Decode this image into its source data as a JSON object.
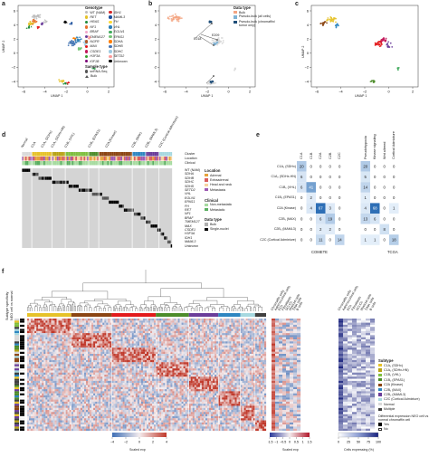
{
  "panels": {
    "a": "a",
    "b": "b",
    "c": "c",
    "d": "d",
    "e": "e",
    "f": "f"
  },
  "umap": {
    "xlabel": "UMAP 1",
    "ylabel": "UMAP 2",
    "x_ticks": [
      "−6",
      "−4",
      "−2",
      "0",
      "2"
    ],
    "y_ticks": [
      "6",
      "4",
      "2",
      "0",
      "−2",
      "−4"
    ]
  },
  "genotype_legend": {
    "title": "Genotype",
    "items": [
      {
        "label": "WT (NAM)",
        "color": "#bdbdbd"
      },
      {
        "label": "RET",
        "color": "#e6c229"
      },
      {
        "label": "HRAS",
        "color": "#1f8a3b"
      },
      {
        "label": "NF1",
        "color": "#e8702a"
      },
      {
        "label": "BRAF",
        "color": "#f3a6c8"
      },
      {
        "label": "TMEM127",
        "color": "#6a3d9a"
      },
      {
        "label": "NGFR",
        "color": "#b15928"
      },
      {
        "label": "MAX",
        "color": "#e31a1c"
      },
      {
        "label": "CSDE1",
        "color": "#c2185b"
      },
      {
        "label": "H3F3A",
        "color": "#33a02c"
      },
      {
        "label": "KIF1B",
        "color": "#7a0177"
      },
      {
        "label": "IDH1",
        "color": "#d62728"
      },
      {
        "label": "MAML3",
        "color": "#1b4f9c"
      },
      {
        "label": "FH",
        "color": "#fdd835"
      },
      {
        "label": "VHL",
        "color": "#2c7fb8"
      },
      {
        "label": "EGLN1",
        "color": "#41ab5d"
      },
      {
        "label": "EPAS1",
        "color": "#74c476"
      },
      {
        "label": "SDHA",
        "color": "#ff7f00"
      },
      {
        "label": "SDHB",
        "color": "#4575b4"
      },
      {
        "label": "SDHC",
        "color": "#9ecae1"
      },
      {
        "label": "SETD2",
        "color": "#fb9a99"
      },
      {
        "label": "Unknown",
        "color": "#000000"
      }
    ],
    "sample_title": "Sample type",
    "sample_items": [
      "snRNA-Seq",
      "Bulk"
    ]
  },
  "datatype_legend": {
    "title": "Data type",
    "items": [
      {
        "label": "Bulk",
        "color": "#f4a582"
      },
      {
        "label": "Pseudo-bulk (all cells)",
        "color": "#7fb3d5"
      },
      {
        "label": "Pseudo-bulk (chromaffin/ tumor only)",
        "color": "#1f4e79"
      }
    ],
    "annotations": [
      "E018",
      "E209"
    ]
  },
  "heatmap_d": {
    "subtypes": [
      "Normal",
      "C1A",
      "C1A₂ (SDHx)",
      "C1A₁ (SDHx-HN)",
      "C1B₁ (VHL)",
      "C1B₂ (EPAS1)",
      "C2A (Kinase)",
      "C2B₁ (MAX)",
      "C2B₂ (MAML3)",
      "C2C (Cortical Admixture)"
    ],
    "track_labels": [
      "Cluster",
      "Location",
      "Clinical"
    ],
    "genes": [
      "WT (NAM)",
      "SDHA",
      "SDHB",
      "SDHC",
      "SDHD",
      "SETD2",
      "VHL",
      "EGLN1",
      "EPAS1",
      "FH",
      "RET",
      "NF1",
      "BRAF",
      "TMEM127",
      "MAX",
      "CSDE1",
      "H3F3A",
      "IDH1",
      "MAML3",
      "Unknown"
    ],
    "location_title": "Location",
    "location_items": [
      {
        "label": "Adrenal",
        "color": "#e6a33a"
      },
      {
        "label": "Extraadrenal",
        "color": "#d95f5f"
      },
      {
        "label": "Head and neck",
        "color": "#f7d4a0"
      },
      {
        "label": "Metastasis",
        "color": "#9e5ab3"
      }
    ],
    "clinical_title": "Clinical",
    "clinical_items": [
      {
        "label": "Non-metastatic",
        "color": "#a6dba0"
      },
      {
        "label": "Metastatic",
        "color": "#5aae61"
      }
    ],
    "datatype_title": "Data type",
    "datatype_items": [
      {
        "label": "Bulk",
        "color": "#b0b0b0"
      },
      {
        "label": "Single-nuclei",
        "color": "#000000"
      }
    ]
  },
  "matrix_e": {
    "col_labels": [
      "C1A",
      "C1B",
      "C2A",
      "C2B",
      "C2C"
    ],
    "row_labels": [
      "C1A₁ (SDHx)",
      "C1A₂ (SDHx-HN)",
      "C1B₁ (VHL)",
      "C1B₂ (EPAS1)",
      "C2A (Kinase)",
      "C2B₁ (MAX)",
      "C2B₂ (MAML3)",
      "C2C (Cortical Admixture)"
    ],
    "values": [
      [
        20,
        0,
        0,
        0,
        0
      ],
      [
        6,
        0,
        0,
        0,
        0
      ],
      [
        6,
        41,
        0,
        0,
        0
      ],
      [
        0,
        2,
        0,
        0,
        0
      ],
      [
        0,
        4,
        67,
        3,
        0
      ],
      [
        0,
        0,
        6,
        19,
        0
      ],
      [
        0,
        0,
        2,
        2,
        0
      ],
      [
        0,
        0,
        11,
        0,
        14
      ]
    ],
    "col_labels_right": [
      "Pseudohypoxia",
      "Kinase signaling",
      "Wnt altered",
      "Cortical Admixture"
    ],
    "values_right": [
      [
        20,
        0,
        0,
        0
      ],
      [
        5,
        0,
        0,
        0
      ],
      [
        14,
        0,
        0,
        0
      ],
      [
        1,
        0,
        0,
        0
      ],
      [
        4,
        68,
        0,
        1
      ],
      [
        13,
        6,
        0,
        0
      ],
      [
        0,
        0,
        8,
        0
      ],
      [
        1,
        1,
        0,
        18
      ]
    ],
    "footer_left": "COMETE",
    "footer_right": "TCGA"
  },
  "heatmap_f": {
    "row_labels": [
      "Subtype specificity",
      "NEO cell vs normal"
    ],
    "celltype_cols": [
      "Chromaffin cells",
      "Adrenocortical cells",
      "ECs",
      "Fibroblasts",
      "SCLCs",
      "Myeloid cells",
      "T/NK cells",
      "B cells"
    ],
    "celltype_cols2": [
      "Chromaffin cells",
      "Adrenocortical cells",
      "ECs",
      "Fibroblasts",
      "SCLCs",
      "Myeloid cells",
      "T/NK cells",
      "B cells"
    ],
    "scale1_title": "Scaled exp",
    "scale1_ticks": [
      "−4",
      "−2",
      "0",
      "2",
      "4"
    ],
    "scale2_title": "Scaled exp",
    "scale2_ticks": [
      "−1.5",
      "−1",
      "−0.5",
      "0",
      "0.5",
      "1",
      "1.5"
    ],
    "scale3_title": "Cells expressing (%)",
    "scale3_ticks": [
      "0",
      "25",
      "50",
      "75",
      "100"
    ],
    "subtype_title": "Subtype",
    "subtype_items": [
      {
        "label": "C1A₁ (SDHx)",
        "color": "#e6c229"
      },
      {
        "label": "C1A₂ (SDHx-HN)",
        "color": "#b8a316"
      },
      {
        "label": "C1B₁ (VHL)",
        "color": "#7fbf3f"
      },
      {
        "label": "C1B₂ (EPAS1)",
        "color": "#4c8c2a"
      },
      {
        "label": "C2A (Kinase)",
        "color": "#8b4513"
      },
      {
        "label": "C2B₁ (MAX)",
        "color": "#2e86c1"
      },
      {
        "label": "C2B₂ (MAML3)",
        "color": "#6a3d9a"
      },
      {
        "label": "C2C (Cortical Admixture)",
        "color": "#a6d8e0"
      },
      {
        "label": "Normal",
        "color": "#d9d9d9"
      },
      {
        "label": "Multiple",
        "color": "#404040"
      }
    ],
    "diff_title": "Differential expression NEO cell vs normal chromaffin cell",
    "diff_items": [
      {
        "label": "Yes",
        "color": "#000000"
      },
      {
        "label": "No",
        "color": "#ffffff"
      }
    ]
  },
  "colors": {
    "heat_neg": "#3f6fb5",
    "heat_mid": "#f4ecee",
    "heat_pos": "#c0392b",
    "matrix_blue": "#2e6fb6"
  }
}
